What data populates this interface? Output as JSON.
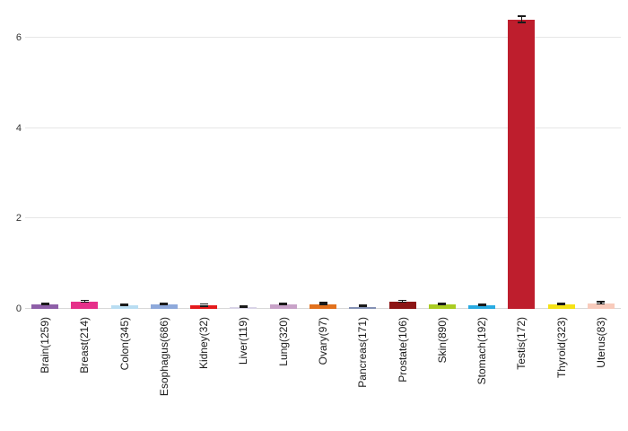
{
  "chart_data": {
    "type": "bar",
    "title": "",
    "xlabel": "",
    "ylabel": "",
    "legend": "none",
    "grid": true,
    "categories": [
      "Brain(1259)",
      "Breast(214)",
      "Colon(345)",
      "Esophagus(686)",
      "Kidney(32)",
      "Liver(119)",
      "Lung(320)",
      "Ovary(97)",
      "Pancreas(171)",
      "Prostate(106)",
      "Skin(890)",
      "Stomach(192)",
      "Testis(172)",
      "Thyroid(323)",
      "Uterus(83)"
    ],
    "values": [
      0.1,
      0.15,
      0.08,
      0.09,
      0.07,
      0.04,
      0.1,
      0.1,
      0.05,
      0.15,
      0.1,
      0.07,
      6.4,
      0.1,
      0.12
    ],
    "errors": [
      0.015,
      0.02,
      0.012,
      0.012,
      0.02,
      0.01,
      0.012,
      0.02,
      0.012,
      0.02,
      0.012,
      0.012,
      0.07,
      0.012,
      0.025
    ],
    "colors": [
      "#8e5fa8",
      "#e6308a",
      "#b9ddf2",
      "#8ea9db",
      "#e41a1c",
      "#d9d4e7",
      "#c8a2c8",
      "#e2711d",
      "#8491b4",
      "#8c1515",
      "#aacc22",
      "#29abe2",
      "#be1e2d",
      "#f5e216",
      "#f8cbbc"
    ],
    "error_bar_color": "#1a1a1a",
    "yticks": [
      0,
      2,
      4,
      6
    ],
    "ylim": [
      0,
      6.6
    ]
  }
}
